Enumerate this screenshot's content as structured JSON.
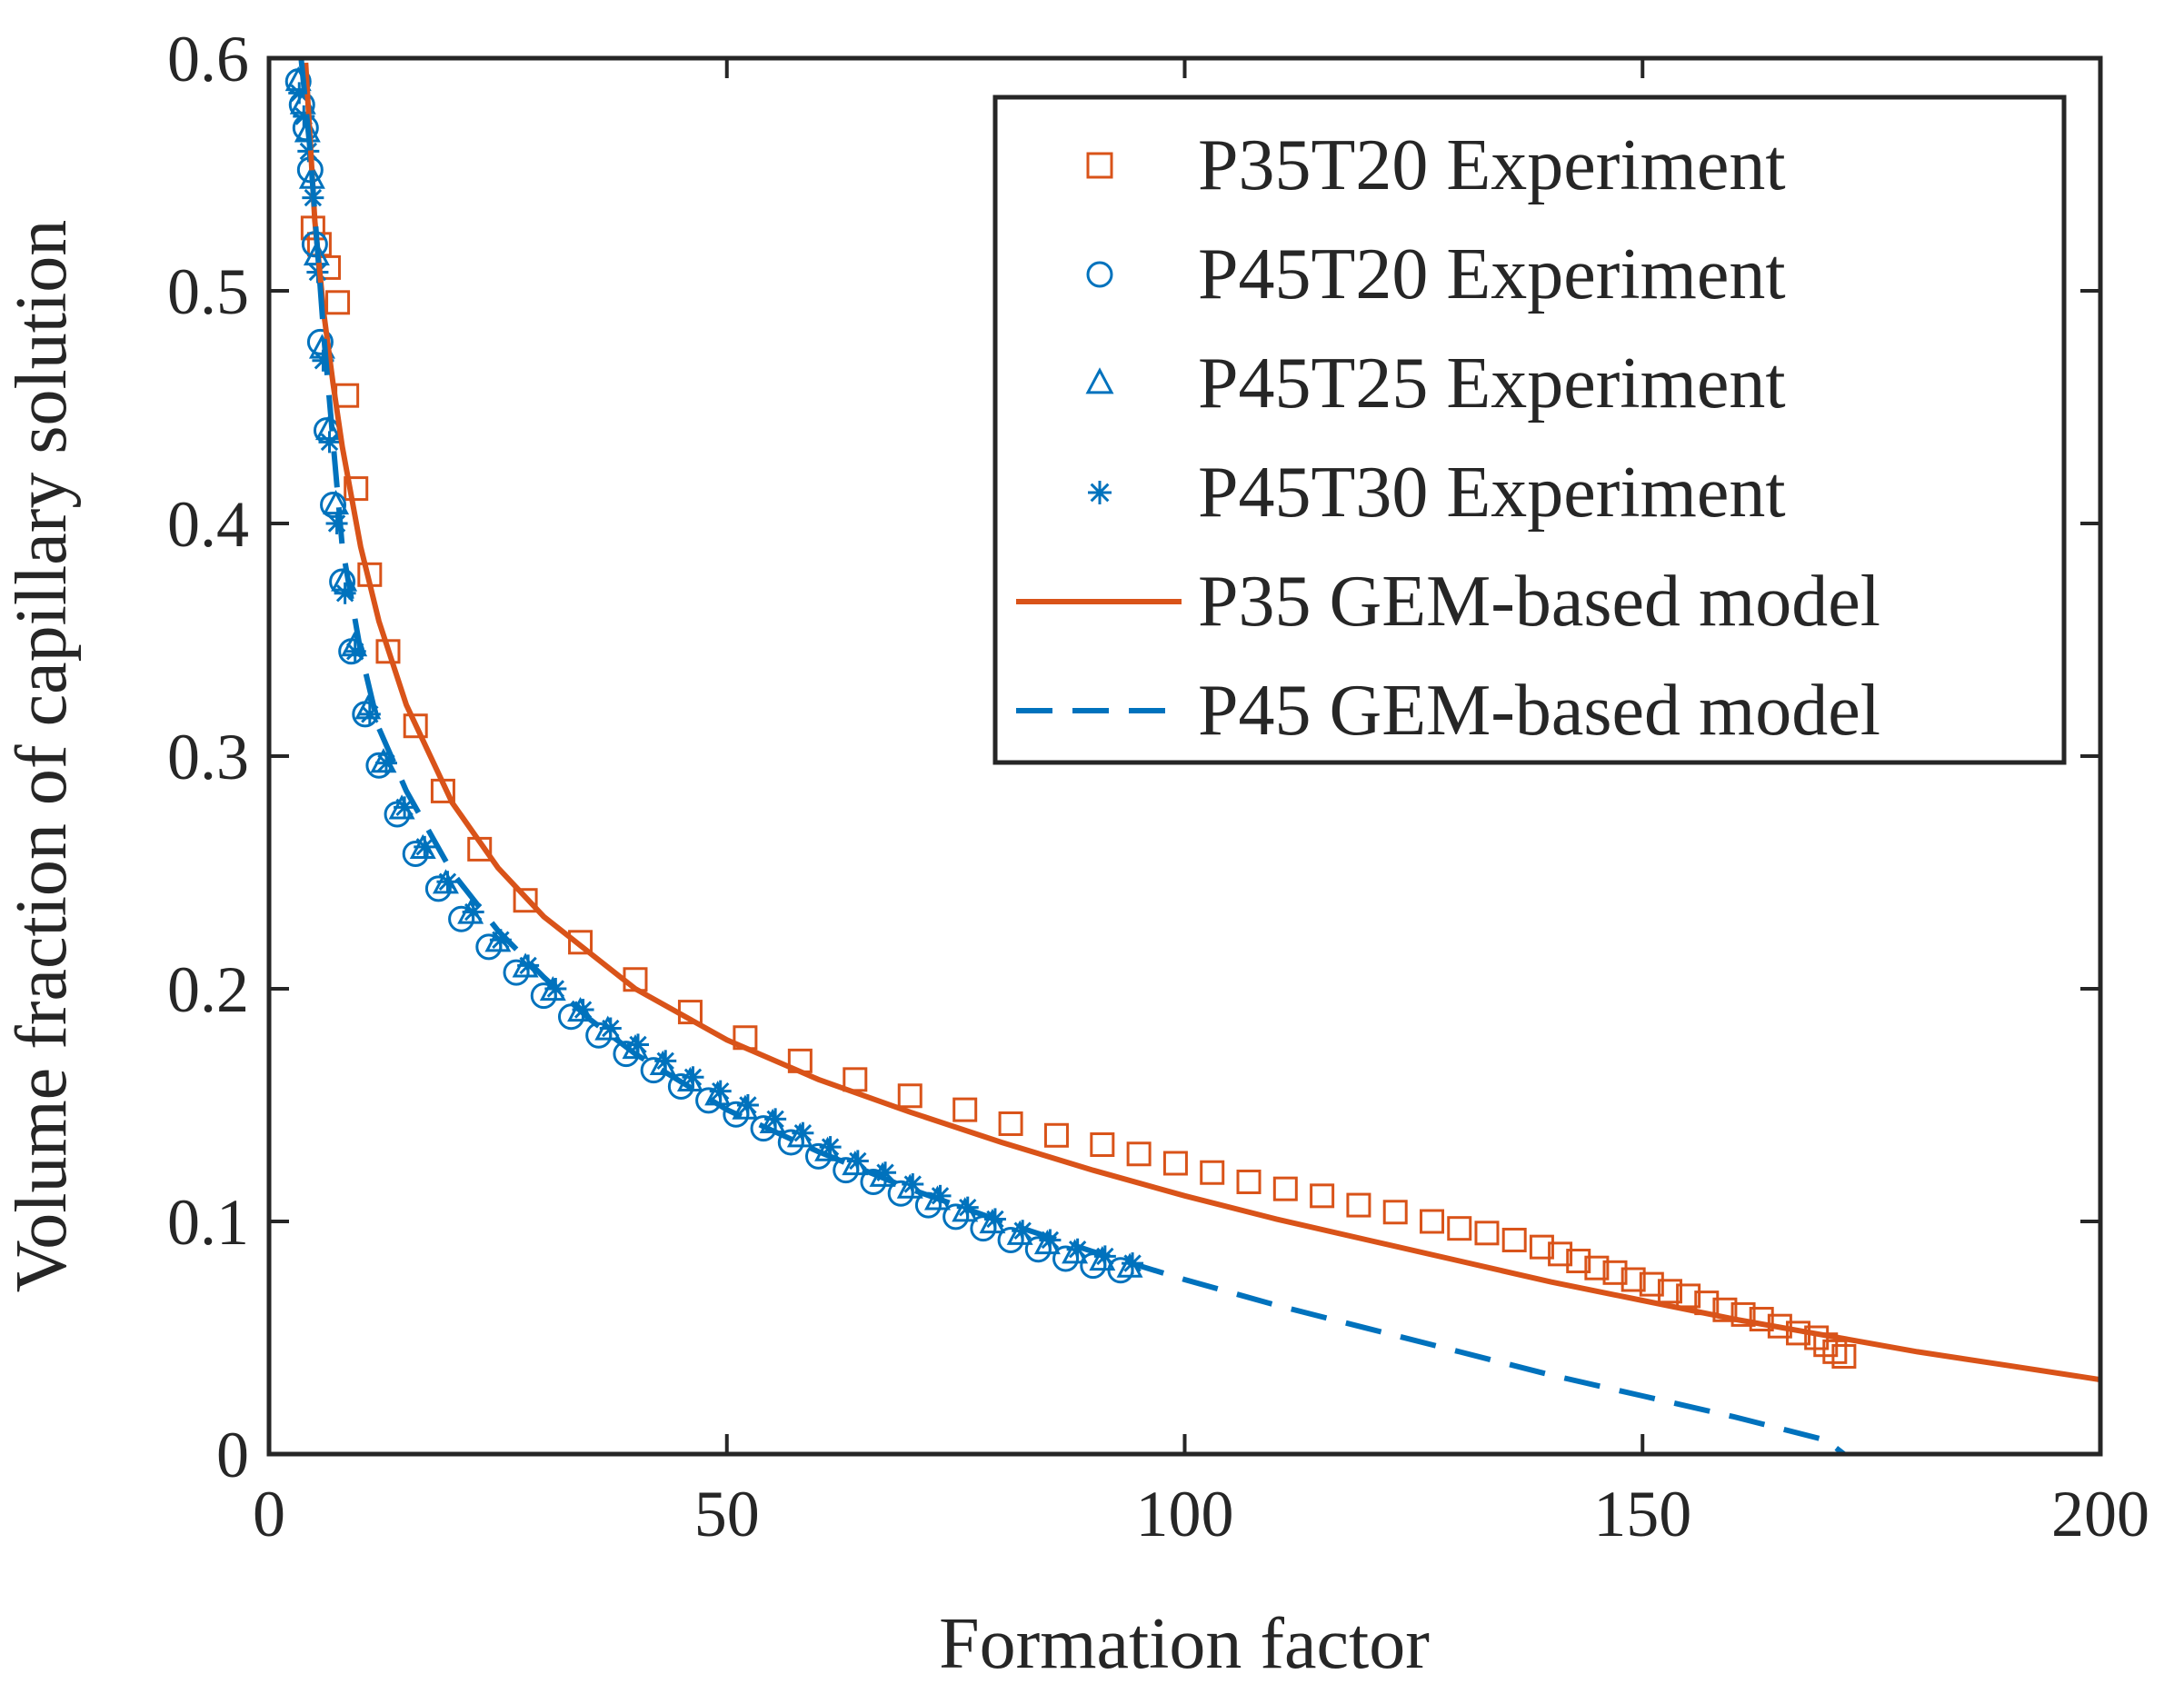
{
  "chart_data": {
    "type": "scatter",
    "title": "",
    "xlabel": "Formation factor",
    "ylabel": "Volume fraction of capillary solution",
    "xlim": [
      0,
      200
    ],
    "ylim": [
      0,
      0.6
    ],
    "xticks": [
      0,
      50,
      100,
      150,
      200
    ],
    "xtick_labels": [
      "0",
      "50",
      "100",
      "150",
      "200"
    ],
    "yticks": [
      0,
      0.1,
      0.2,
      0.3,
      0.4,
      0.5,
      0.6
    ],
    "ytick_labels": [
      "0",
      "0.1",
      "0.2",
      "0.3",
      "0.4",
      "0.5",
      "0.6"
    ],
    "grid": false,
    "legend_position": "top-right",
    "colors": {
      "p35": "#D95319",
      "p45": "#0072BD",
      "axis": "#262626"
    },
    "series": [
      {
        "name": "P35T20 Experiment",
        "kind": "marker",
        "marker": "square",
        "color": "#D95319",
        "x": [
          4.8,
          5.5,
          6.5,
          7.5,
          8.5,
          9.5,
          11,
          13,
          16,
          19,
          23,
          28,
          34,
          40,
          46,
          52,
          58,
          64,
          70,
          76,
          81,
          86,
          91,
          95,
          99,
          103,
          107,
          111,
          115,
          119,
          123,
          127,
          130,
          133,
          136,
          139,
          141,
          143,
          145,
          147,
          149,
          151,
          153,
          155,
          157,
          159,
          161,
          163,
          165,
          167,
          169,
          170,
          171,
          172
        ],
        "y": [
          0.527,
          0.52,
          0.51,
          0.495,
          0.455,
          0.415,
          0.378,
          0.345,
          0.313,
          0.285,
          0.26,
          0.238,
          0.22,
          0.204,
          0.19,
          0.179,
          0.169,
          0.161,
          0.154,
          0.148,
          0.142,
          0.137,
          0.133,
          0.129,
          0.125,
          0.121,
          0.117,
          0.114,
          0.111,
          0.107,
          0.104,
          0.1,
          0.097,
          0.095,
          0.092,
          0.089,
          0.086,
          0.083,
          0.08,
          0.078,
          0.075,
          0.073,
          0.07,
          0.068,
          0.065,
          0.062,
          0.06,
          0.058,
          0.055,
          0.052,
          0.05,
          0.047,
          0.044,
          0.042
        ]
      },
      {
        "name": "P45T20 Experiment",
        "kind": "marker",
        "marker": "circle",
        "color": "#0072BD",
        "x": [
          3.2,
          3.6,
          4,
          4.5,
          5,
          5.6,
          6.3,
          7,
          8,
          9,
          10.5,
          12,
          14,
          16,
          18.5,
          21,
          24,
          27,
          30,
          33,
          36,
          39,
          42,
          45,
          48,
          51,
          54,
          57,
          60,
          63,
          66,
          69,
          72,
          75,
          78,
          81,
          84,
          87,
          90,
          93
        ],
        "y": [
          0.59,
          0.58,
          0.57,
          0.552,
          0.52,
          0.478,
          0.44,
          0.408,
          0.375,
          0.345,
          0.318,
          0.296,
          0.275,
          0.258,
          0.243,
          0.23,
          0.218,
          0.207,
          0.197,
          0.188,
          0.18,
          0.172,
          0.165,
          0.158,
          0.152,
          0.146,
          0.14,
          0.134,
          0.128,
          0.122,
          0.117,
          0.112,
          0.107,
          0.102,
          0.097,
          0.092,
          0.088,
          0.084,
          0.081,
          0.079
        ]
      },
      {
        "name": "P45T25 Experiment",
        "kind": "marker",
        "marker": "triangle",
        "color": "#0072BD",
        "x": [
          3.2,
          3.7,
          4.2,
          4.7,
          5.2,
          5.8,
          6.5,
          7.3,
          8.2,
          9.3,
          10.8,
          12.5,
          14.5,
          16.8,
          19.3,
          22,
          25,
          28,
          31,
          34,
          37,
          40,
          43,
          46,
          49,
          52,
          55,
          58,
          61,
          64,
          67,
          70,
          73,
          76,
          79,
          82,
          85,
          88,
          91,
          94
        ],
        "y": [
          0.59,
          0.58,
          0.568,
          0.548,
          0.515,
          0.475,
          0.44,
          0.408,
          0.375,
          0.347,
          0.32,
          0.297,
          0.277,
          0.26,
          0.245,
          0.232,
          0.22,
          0.209,
          0.199,
          0.19,
          0.182,
          0.174,
          0.167,
          0.16,
          0.154,
          0.148,
          0.142,
          0.136,
          0.13,
          0.124,
          0.119,
          0.114,
          0.109,
          0.104,
          0.099,
          0.094,
          0.09,
          0.086,
          0.083,
          0.08
        ]
      },
      {
        "name": "P45T30 Experiment",
        "kind": "marker",
        "marker": "asterisk",
        "color": "#0072BD",
        "x": [
          3.3,
          3.8,
          4.3,
          4.8,
          5.3,
          5.9,
          6.6,
          7.4,
          8.3,
          9.4,
          11,
          12.8,
          14.8,
          17,
          19.5,
          22.3,
          25.3,
          28.3,
          31.3,
          34.3,
          37.3,
          40.3,
          43.3,
          46.3,
          49.3,
          52.3,
          55.3,
          58.3,
          61.3,
          64.3,
          67.3,
          70.3,
          73.3,
          76.3,
          79.3,
          82.3,
          85.3,
          88.3,
          91.3,
          94.3
        ],
        "y": [
          0.585,
          0.575,
          0.56,
          0.54,
          0.508,
          0.47,
          0.435,
          0.4,
          0.37,
          0.345,
          0.318,
          0.297,
          0.278,
          0.261,
          0.246,
          0.233,
          0.221,
          0.21,
          0.2,
          0.191,
          0.183,
          0.176,
          0.169,
          0.162,
          0.156,
          0.15,
          0.144,
          0.138,
          0.132,
          0.126,
          0.121,
          0.116,
          0.111,
          0.106,
          0.101,
          0.096,
          0.092,
          0.088,
          0.085,
          0.082
        ]
      },
      {
        "name": "P35 GEM-based model",
        "kind": "line",
        "dash": "solid",
        "color": "#D95319",
        "x": [
          4,
          5,
          6,
          7,
          8,
          10,
          12,
          15,
          20,
          25,
          30,
          40,
          50,
          60,
          70,
          80,
          90,
          100,
          110,
          120,
          130,
          140,
          150,
          160,
          170,
          180,
          190,
          200
        ],
        "y": [
          0.598,
          0.53,
          0.49,
          0.46,
          0.433,
          0.39,
          0.358,
          0.322,
          0.28,
          0.252,
          0.231,
          0.2,
          0.178,
          0.161,
          0.147,
          0.134,
          0.122,
          0.111,
          0.101,
          0.092,
          0.083,
          0.074,
          0.066,
          0.058,
          0.051,
          0.044,
          0.038,
          0.032
        ]
      },
      {
        "name": "P45 GEM-based model",
        "kind": "line",
        "dash": "dashed",
        "color": "#0072BD",
        "x": [
          3.5,
          4.5,
          6,
          8,
          10,
          12,
          15,
          20,
          25,
          30,
          35,
          40,
          50,
          60,
          70,
          80,
          90,
          100,
          110,
          120,
          130,
          140,
          150,
          160,
          170,
          172
        ],
        "y": [
          0.6,
          0.56,
          0.48,
          0.39,
          0.345,
          0.312,
          0.285,
          0.25,
          0.225,
          0.205,
          0.187,
          0.172,
          0.148,
          0.13,
          0.114,
          0.1,
          0.087,
          0.075,
          0.064,
          0.054,
          0.044,
          0.034,
          0.025,
          0.016,
          0.006,
          0.0
        ]
      }
    ]
  }
}
